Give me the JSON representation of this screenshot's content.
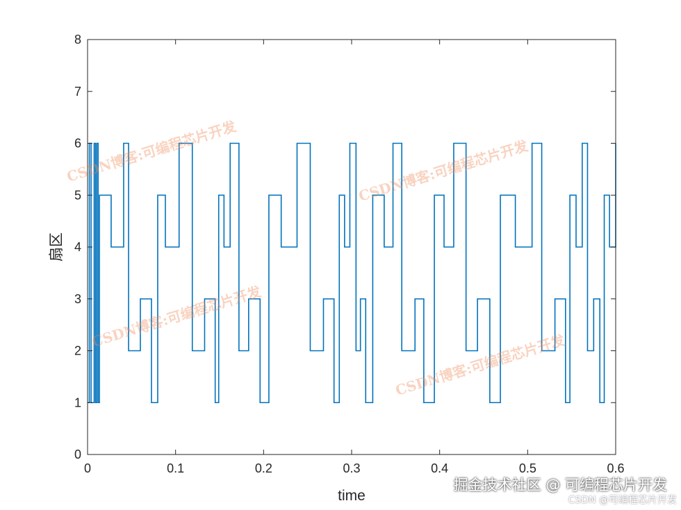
{
  "chart_data": {
    "type": "line",
    "title": "",
    "xlabel": "time",
    "ylabel": "扇区",
    "xlim": [
      0,
      0.6
    ],
    "ylim": [
      0,
      8
    ],
    "xticks": [
      0,
      0.1,
      0.2,
      0.3,
      0.4,
      0.5,
      0.6
    ],
    "xtick_labels": [
      "0",
      "0.1",
      "0.2",
      "0.3",
      "0.4",
      "0.5",
      "0.6"
    ],
    "yticks": [
      0,
      1,
      2,
      3,
      4,
      5,
      6,
      7,
      8
    ],
    "ytick_labels": [
      "0",
      "1",
      "2",
      "3",
      "4",
      "5",
      "6",
      "7",
      "8"
    ],
    "grid": false,
    "line_color": "#0072BD",
    "step_series": [
      [
        0,
        1
      ],
      [
        0.002,
        6
      ],
      [
        0.004,
        1
      ],
      [
        0.0075,
        6
      ],
      [
        0.009,
        1
      ],
      [
        0.0105,
        6
      ],
      [
        0.012,
        1
      ],
      [
        0.0135,
        5
      ],
      [
        0.015,
        5
      ],
      [
        0.0268,
        4
      ],
      [
        0.041,
        6
      ],
      [
        0.0466,
        2
      ],
      [
        0.06,
        3
      ],
      [
        0.0726,
        1
      ],
      [
        0.0797,
        5
      ],
      [
        0.0884,
        4
      ],
      [
        0.104,
        6
      ],
      [
        0.119,
        2
      ],
      [
        0.133,
        3
      ],
      [
        0.145,
        1
      ],
      [
        0.149,
        5
      ],
      [
        0.155,
        4
      ],
      [
        0.162,
        6
      ],
      [
        0.172,
        2
      ],
      [
        0.183,
        3
      ],
      [
        0.196,
        1
      ],
      [
        0.206,
        5
      ],
      [
        0.22,
        4
      ],
      [
        0.238,
        6
      ],
      [
        0.253,
        2
      ],
      [
        0.268,
        3
      ],
      [
        0.28,
        1
      ],
      [
        0.286,
        5
      ],
      [
        0.292,
        4
      ],
      [
        0.298,
        6
      ],
      [
        0.305,
        2
      ],
      [
        0.31,
        3
      ],
      [
        0.316,
        1
      ],
      [
        0.324,
        5
      ],
      [
        0.337,
        4
      ],
      [
        0.347,
        6
      ],
      [
        0.357,
        2
      ],
      [
        0.372,
        3
      ],
      [
        0.382,
        1
      ],
      [
        0.394,
        5
      ],
      [
        0.405,
        4
      ],
      [
        0.416,
        6
      ],
      [
        0.43,
        2
      ],
      [
        0.443,
        3
      ],
      [
        0.457,
        1
      ],
      [
        0.469,
        5
      ],
      [
        0.486,
        4
      ],
      [
        0.505,
        6
      ],
      [
        0.516,
        2
      ],
      [
        0.531,
        3
      ],
      [
        0.543,
        1
      ],
      [
        0.548,
        5
      ],
      [
        0.555,
        4
      ],
      [
        0.562,
        6
      ],
      [
        0.568,
        2
      ],
      [
        0.575,
        3
      ],
      [
        0.582,
        1
      ],
      [
        0.587,
        5
      ],
      [
        0.593,
        4
      ],
      [
        0.6,
        6
      ]
    ]
  },
  "watermarks": {
    "repeated": "CSDN博客:可编程芯片开发",
    "juejin": "掘金技术社区 @ 可编程芯片开发",
    "csdn": "CSDN @可编程芯片开发"
  }
}
